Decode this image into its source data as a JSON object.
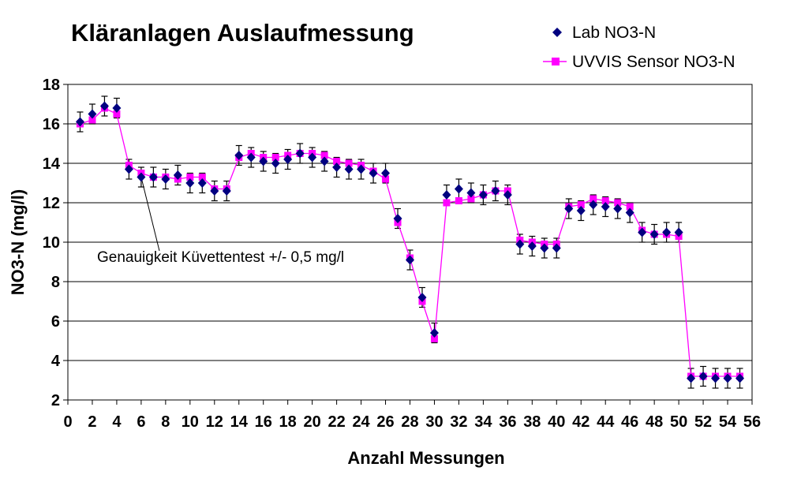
{
  "chart_data": {
    "type": "line",
    "title": "Kläranlagen Auslaufmessung",
    "xlabel": "Anzahl Messungen",
    "ylabel": "NO3-N (mg/l)",
    "xlim": [
      0,
      56
    ],
    "ylim": [
      2,
      18
    ],
    "x_ticks": [
      0,
      2,
      4,
      6,
      8,
      10,
      12,
      14,
      16,
      18,
      20,
      22,
      24,
      26,
      28,
      30,
      32,
      34,
      36,
      38,
      40,
      42,
      44,
      46,
      48,
      50,
      52,
      54,
      56
    ],
    "y_ticks": [
      2,
      4,
      6,
      8,
      10,
      12,
      14,
      16,
      18
    ],
    "grid": "horizontal",
    "legend_position": "top-right",
    "annotation": "Genauigkeit Küvettentest +/- 0,5 mg/l",
    "error_bar": 0.5,
    "series": [
      {
        "name": "Lab NO3-N",
        "marker": "diamond",
        "color": "#000080",
        "line": false,
        "error_bars": true,
        "x": [
          1,
          2,
          3,
          4,
          5,
          6,
          7,
          8,
          9,
          10,
          11,
          12,
          13,
          14,
          15,
          16,
          17,
          18,
          19,
          20,
          21,
          22,
          23,
          24,
          25,
          26,
          27,
          28,
          29,
          30,
          31,
          32,
          33,
          34,
          35,
          36,
          37,
          38,
          39,
          40,
          41,
          42,
          43,
          44,
          45,
          46,
          47,
          48,
          49,
          50,
          51,
          52,
          53,
          54,
          55
        ],
        "values": [
          16.1,
          16.5,
          16.9,
          16.8,
          13.7,
          13.3,
          13.3,
          13.2,
          13.4,
          13.0,
          13.0,
          12.6,
          12.6,
          14.4,
          14.3,
          14.1,
          14.0,
          14.2,
          14.5,
          14.3,
          14.1,
          13.8,
          13.7,
          13.7,
          13.5,
          13.5,
          11.2,
          9.1,
          7.2,
          5.4,
          12.4,
          12.7,
          12.5,
          12.4,
          12.6,
          12.4,
          9.9,
          9.8,
          9.7,
          9.7,
          11.7,
          11.6,
          11.9,
          11.8,
          11.7,
          11.5,
          10.5,
          10.4,
          10.5,
          10.5,
          3.1,
          3.2,
          3.1,
          3.1,
          3.1
        ]
      },
      {
        "name": "UVVIS Sensor NO3-N",
        "marker": "square",
        "color": "#ff00ff",
        "line": true,
        "x": [
          1,
          2,
          3,
          4,
          5,
          6,
          7,
          8,
          9,
          10,
          11,
          12,
          13,
          14,
          15,
          16,
          17,
          18,
          19,
          20,
          21,
          22,
          23,
          24,
          25,
          26,
          27,
          28,
          29,
          30,
          31,
          32,
          33,
          34,
          35,
          36,
          37,
          38,
          39,
          40,
          41,
          42,
          43,
          44,
          45,
          46,
          47,
          48,
          49,
          50,
          51,
          52,
          53,
          54,
          55
        ],
        "values": [
          16.0,
          16.2,
          16.8,
          16.5,
          13.9,
          13.5,
          13.3,
          13.3,
          13.2,
          13.3,
          13.3,
          12.7,
          12.7,
          14.3,
          14.5,
          14.3,
          14.3,
          14.4,
          14.5,
          14.5,
          14.4,
          14.1,
          14.0,
          13.9,
          13.6,
          13.2,
          11.0,
          9.2,
          7.0,
          5.1,
          12.0,
          12.1,
          12.2,
          12.4,
          12.6,
          12.6,
          10.1,
          10.0,
          9.9,
          9.9,
          11.8,
          11.9,
          12.2,
          12.1,
          12.0,
          11.8,
          10.6,
          10.4,
          10.4,
          10.3,
          3.2,
          3.2,
          3.2,
          3.2,
          3.2
        ]
      }
    ]
  }
}
